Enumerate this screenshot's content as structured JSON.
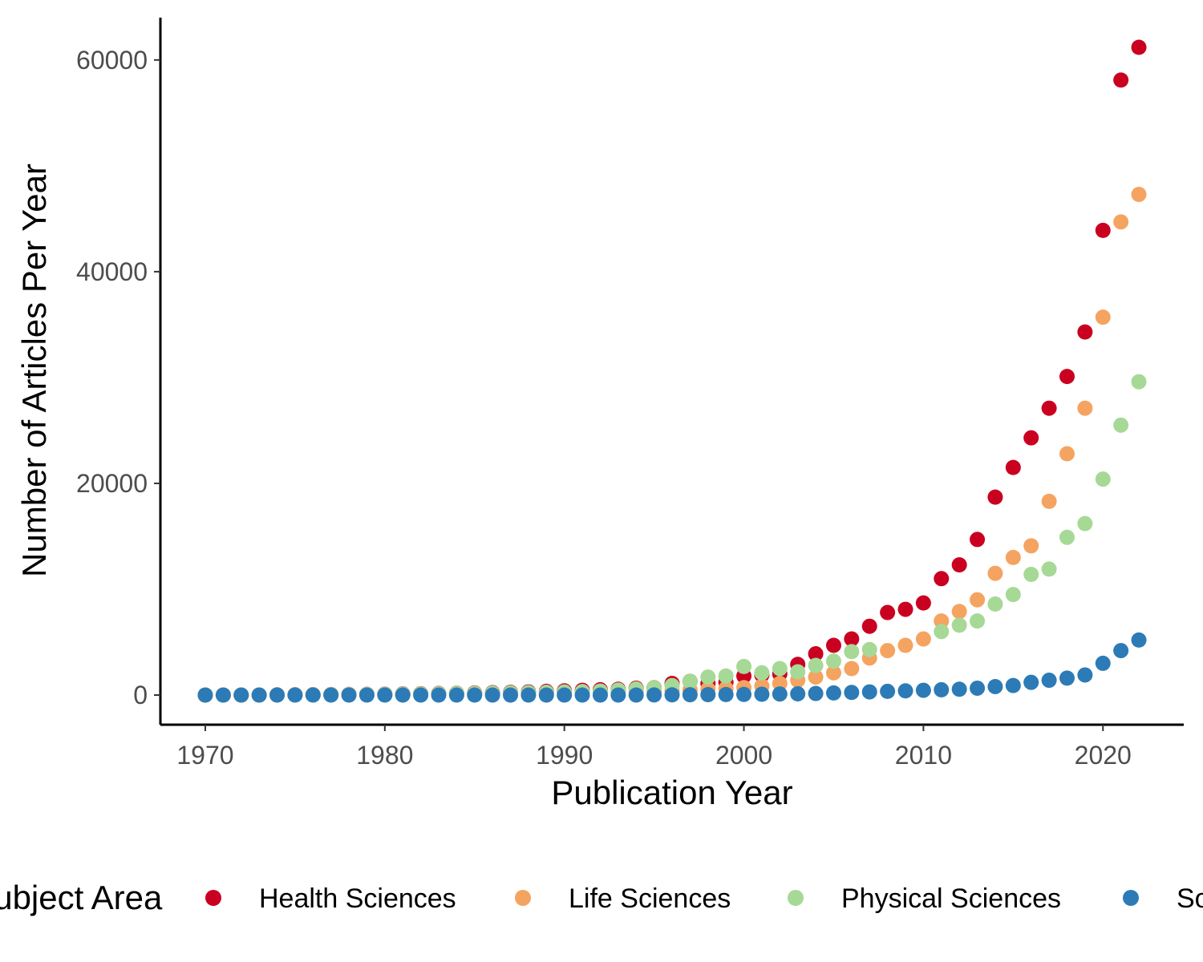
{
  "chart_data": {
    "type": "scatter",
    "xlabel": "Publication Year",
    "ylabel": "Number of Articles Per Year",
    "xlim": [
      1967.5,
      2024.5
    ],
    "ylim": [
      -2800,
      64000
    ],
    "x_ticks": [
      1970,
      1980,
      1990,
      2000,
      2010,
      2020
    ],
    "y_ticks": [
      0,
      20000,
      40000,
      60000
    ],
    "grid": false,
    "legend": {
      "title": "Subject Area",
      "placement": "bottom"
    },
    "series": [
      {
        "name": "Health Sciences",
        "color": "#ca0020",
        "x": [
          1970,
          1971,
          1972,
          1973,
          1974,
          1975,
          1976,
          1977,
          1978,
          1979,
          1980,
          1981,
          1982,
          1983,
          1984,
          1985,
          1986,
          1987,
          1988,
          1989,
          1990,
          1991,
          1992,
          1993,
          1994,
          1995,
          1996,
          1997,
          1998,
          1999,
          2000,
          2001,
          2002,
          2003,
          2004,
          2005,
          2006,
          2007,
          2008,
          2009,
          2010,
          2011,
          2012,
          2013,
          2014,
          2015,
          2016,
          2017,
          2018,
          2019,
          2020,
          2021,
          2022
        ],
        "y": [
          0,
          0,
          0,
          0,
          20,
          30,
          40,
          50,
          60,
          70,
          90,
          110,
          130,
          150,
          170,
          200,
          230,
          260,
          300,
          350,
          400,
          450,
          500,
          550,
          650,
          700,
          1100,
          1300,
          1100,
          1200,
          1800,
          1900,
          2000,
          2900,
          3900,
          4700,
          5300,
          6500,
          7800,
          8100,
          8700,
          11000,
          12300,
          14700,
          18700,
          21500,
          24300,
          27100,
          30100,
          34300,
          43900,
          58100,
          61200
        ]
      },
      {
        "name": "Life Sciences",
        "color": "#f4a460",
        "x": [
          1970,
          1971,
          1972,
          1973,
          1974,
          1975,
          1976,
          1977,
          1978,
          1979,
          1980,
          1981,
          1982,
          1983,
          1984,
          1985,
          1986,
          1987,
          1988,
          1989,
          1990,
          1991,
          1992,
          1993,
          1994,
          1995,
          1996,
          1997,
          1998,
          1999,
          2000,
          2001,
          2002,
          2003,
          2004,
          2005,
          2006,
          2007,
          2008,
          2009,
          2010,
          2011,
          2012,
          2013,
          2014,
          2015,
          2016,
          2017,
          2018,
          2019,
          2020,
          2021,
          2022
        ],
        "y": [
          0,
          0,
          0,
          0,
          10,
          20,
          20,
          30,
          40,
          50,
          60,
          70,
          80,
          90,
          100,
          110,
          120,
          140,
          160,
          180,
          200,
          220,
          250,
          280,
          320,
          370,
          420,
          480,
          550,
          620,
          700,
          850,
          1100,
          1400,
          1700,
          2100,
          2500,
          3500,
          4200,
          4700,
          5300,
          7000,
          7900,
          9000,
          11500,
          13000,
          14100,
          18300,
          22800,
          27100,
          35700,
          44700,
          47300
        ]
      },
      {
        "name": "Physical Sciences",
        "color": "#a6d996",
        "x": [
          1970,
          1971,
          1972,
          1973,
          1974,
          1975,
          1976,
          1977,
          1978,
          1979,
          1980,
          1981,
          1982,
          1983,
          1984,
          1985,
          1986,
          1987,
          1988,
          1989,
          1990,
          1991,
          1992,
          1993,
          1994,
          1995,
          1996,
          1997,
          1998,
          1999,
          2000,
          2001,
          2002,
          2003,
          2004,
          2005,
          2006,
          2007,
          2008,
          2009,
          2010,
          2011,
          2012,
          2013,
          2014,
          2015,
          2016,
          2017,
          2018,
          2019,
          2020,
          2021,
          2022
        ],
        "y": [
          0,
          0,
          0,
          0,
          10,
          20,
          30,
          40,
          50,
          60,
          70,
          90,
          110,
          130,
          150,
          170,
          190,
          210,
          240,
          270,
          300,
          330,
          380,
          480,
          580,
          700,
          900,
          1300,
          1700,
          1800,
          2700,
          2100,
          2500,
          2200,
          2800,
          3200,
          4100,
          4300,
          null,
          null,
          null,
          6000,
          6600,
          7000,
          8600,
          9500,
          11400,
          11900,
          14900,
          16200,
          20400,
          25500,
          29600
        ]
      },
      {
        "name": "Social Sciences",
        "color": "#2c7bb6",
        "x": [
          1970,
          1971,
          1972,
          1973,
          1974,
          1975,
          1976,
          1977,
          1978,
          1979,
          1980,
          1981,
          1982,
          1983,
          1984,
          1985,
          1986,
          1987,
          1988,
          1989,
          1990,
          1991,
          1992,
          1993,
          1994,
          1995,
          1996,
          1997,
          1998,
          1999,
          2000,
          2001,
          2002,
          2003,
          2004,
          2005,
          2006,
          2007,
          2008,
          2009,
          2010,
          2011,
          2012,
          2013,
          2014,
          2015,
          2016,
          2017,
          2018,
          2019,
          2020,
          2021,
          2022
        ],
        "y": [
          0,
          0,
          0,
          0,
          0,
          0,
          0,
          0,
          0,
          0,
          0,
          0,
          0,
          0,
          0,
          0,
          0,
          0,
          0,
          0,
          0,
          0,
          0,
          0,
          0,
          10,
          20,
          30,
          40,
          50,
          60,
          80,
          100,
          120,
          150,
          200,
          250,
          300,
          350,
          400,
          450,
          500,
          550,
          650,
          800,
          900,
          1200,
          1400,
          1600,
          1900,
          3000,
          4200,
          5200
        ]
      }
    ]
  }
}
